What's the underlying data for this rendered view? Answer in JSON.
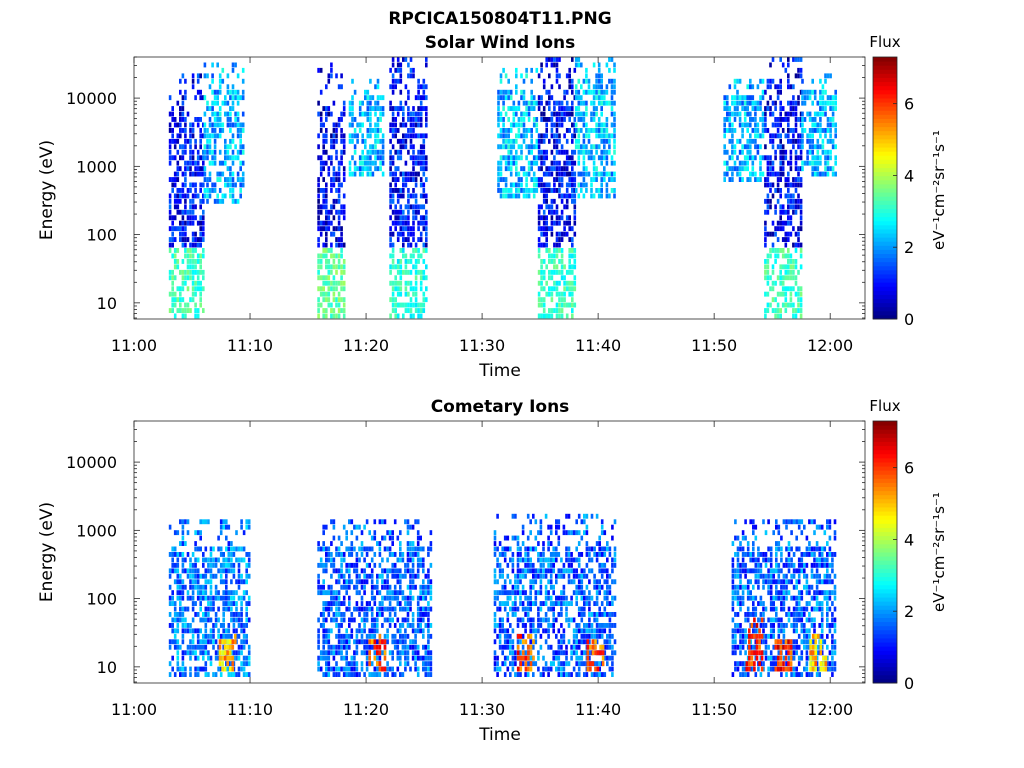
{
  "figure_title": "RPCICA150804T11.PNG",
  "colormap": [
    "#00007f",
    "#0000ff",
    "#007fff",
    "#00ffff",
    "#7fff7f",
    "#ffff00",
    "#ff7f00",
    "#ff0000",
    "#7f0000"
  ],
  "chart_data": [
    {
      "type": "heatmap",
      "title": "Solar Wind Ions",
      "xlabel": "Time",
      "ylabel": "Energy (eV)",
      "yscale": "log",
      "x_ticks": [
        "11:00",
        "11:10",
        "11:20",
        "11:30",
        "11:40",
        "11:50",
        "12:00"
      ],
      "x_range_minutes": [
        0,
        63
      ],
      "y_ticks": [
        10,
        100,
        1000,
        10000
      ],
      "y_tick_labels": [
        "10",
        "100",
        "1000",
        "10000"
      ],
      "y_range": [
        5.8,
        40000
      ],
      "colorbar": {
        "title": "Flux",
        "label": "eV⁻¹cm⁻²sr⁻¹s⁻¹",
        "range": [
          0,
          7.3
        ],
        "ticks": [
          0,
          2,
          4,
          6
        ],
        "tick_labels": [
          "0",
          "2",
          "4",
          "6"
        ]
      },
      "regions": [
        {
          "t_start": 3.0,
          "t_end": 6.0,
          "e_min": 6,
          "e_max": 22000,
          "dominant_flux": 1.0,
          "low_energy_flux": 3.2
        },
        {
          "t_start": 6.0,
          "t_end": 9.5,
          "e_min": 300,
          "e_max": 28000,
          "dominant_flux": 2.2
        },
        {
          "t_start": 15.8,
          "t_end": 18.2,
          "e_min": 6,
          "e_max": 30000,
          "dominant_flux": 0.8,
          "low_energy_flux": 3.4
        },
        {
          "t_start": 18.5,
          "t_end": 21.5,
          "e_min": 700,
          "e_max": 18000,
          "dominant_flux": 2.2
        },
        {
          "t_start": 22.0,
          "t_end": 25.3,
          "e_min": 6,
          "e_max": 35000,
          "dominant_flux": 1.0,
          "low_energy_flux": 3.0
        },
        {
          "t_start": 31.3,
          "t_end": 34.8,
          "e_min": 400,
          "e_max": 25000,
          "dominant_flux": 2.3
        },
        {
          "t_start": 34.8,
          "t_end": 38.0,
          "e_min": 6,
          "e_max": 40000,
          "dominant_flux": 0.9,
          "low_energy_flux": 3.1
        },
        {
          "t_start": 38.0,
          "t_end": 41.5,
          "e_min": 400,
          "e_max": 40000,
          "dominant_flux": 2.3
        },
        {
          "t_start": 50.8,
          "t_end": 54.3,
          "e_min": 600,
          "e_max": 18000,
          "dominant_flux": 2.2
        },
        {
          "t_start": 54.3,
          "t_end": 57.5,
          "e_min": 6,
          "e_max": 40000,
          "dominant_flux": 0.9,
          "low_energy_flux": 3.2
        },
        {
          "t_start": 57.5,
          "t_end": 60.5,
          "e_min": 700,
          "e_max": 22000,
          "dominant_flux": 2.2
        }
      ]
    },
    {
      "type": "heatmap",
      "title": "Cometary Ions",
      "xlabel": "Time",
      "ylabel": "Energy (eV)",
      "yscale": "log",
      "x_ticks": [
        "11:00",
        "11:10",
        "11:20",
        "11:30",
        "11:40",
        "11:50",
        "12:00"
      ],
      "x_range_minutes": [
        0,
        63
      ],
      "y_ticks": [
        10,
        100,
        1000,
        10000
      ],
      "y_tick_labels": [
        "10",
        "100",
        "1000",
        "10000"
      ],
      "y_range": [
        5.8,
        40000
      ],
      "colorbar": {
        "title": "Flux",
        "label": "eV⁻¹cm⁻²sr⁻¹s⁻¹",
        "range": [
          0,
          7.3
        ],
        "ticks": [
          0,
          2,
          4,
          6
        ],
        "tick_labels": [
          "0",
          "2",
          "4",
          "6"
        ]
      },
      "regions": [
        {
          "t_start": 3.0,
          "t_end": 10.0,
          "e_min": 8,
          "e_max": 1300,
          "dominant_flux": 1.8
        },
        {
          "t_start": 7.3,
          "t_end": 8.7,
          "e_min": 10,
          "e_max": 28,
          "dominant_flux": 5.0
        },
        {
          "t_start": 15.8,
          "t_end": 25.5,
          "e_min": 7,
          "e_max": 1300,
          "dominant_flux": 1.6
        },
        {
          "t_start": 20.2,
          "t_end": 21.6,
          "e_min": 9,
          "e_max": 30,
          "dominant_flux": 5.8
        },
        {
          "t_start": 31.0,
          "t_end": 41.5,
          "e_min": 7,
          "e_max": 1500,
          "dominant_flux": 1.6
        },
        {
          "t_start": 33.0,
          "t_end": 34.4,
          "e_min": 9,
          "e_max": 28,
          "dominant_flux": 5.8
        },
        {
          "t_start": 39.0,
          "t_end": 40.5,
          "e_min": 9,
          "e_max": 28,
          "dominant_flux": 5.6
        },
        {
          "t_start": 51.5,
          "t_end": 60.5,
          "e_min": 7,
          "e_max": 1300,
          "dominant_flux": 1.6
        },
        {
          "t_start": 52.7,
          "t_end": 54.2,
          "e_min": 9,
          "e_max": 45,
          "dominant_flux": 6.0
        },
        {
          "t_start": 55.2,
          "t_end": 56.6,
          "e_min": 9,
          "e_max": 30,
          "dominant_flux": 6.1
        },
        {
          "t_start": 58.2,
          "t_end": 59.7,
          "e_min": 9,
          "e_max": 28,
          "dominant_flux": 5.0
        }
      ]
    }
  ]
}
